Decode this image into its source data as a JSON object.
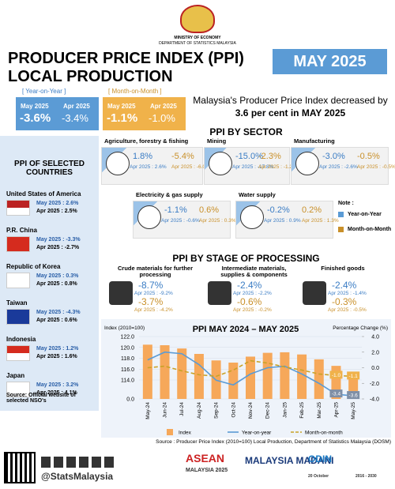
{
  "header": {
    "ministry": "MINISTRY OF ECONOMY",
    "department": "DEPARTMENT OF STATISTICS MALAYSIA",
    "title_line1": "PRODUCER PRICE INDEX (PPI)",
    "title_line2": "LOCAL PRODUCTION",
    "period": "MAY 2025"
  },
  "summary": {
    "yoy": {
      "label": "[ Year-on-Year ]",
      "current_label": "May 2025",
      "current": "-3.6%",
      "previous_label": "Apr 2025",
      "previous": "-3.4%"
    },
    "mom": {
      "label": "[ Month-on-Month ]",
      "current_label": "May 2025",
      "current": "-1.1%",
      "previous_label": "Apr 2025",
      "previous": "-1.0%"
    }
  },
  "headline": {
    "line1": "Malaysia's Producer Price Index decreased by",
    "line2": "3.6 per cent in MAY 2025"
  },
  "sectors": {
    "title": "PPI BY SECTOR",
    "items": [
      {
        "name": "Agriculture, forestry & fishing",
        "yoy": "1.8%",
        "mom": "-5.4%",
        "yoy_prev": "Apr 2025 : 2.6%",
        "mom_prev": "Apr 2025 : -6.0%"
      },
      {
        "name": "Mining",
        "yoy": "-15.0%",
        "mom": "-2.3%",
        "yoy_prev": "Apr 2025 : -17.8%",
        "mom_prev": "Apr 2025 : -1.2%"
      },
      {
        "name": "Manufacturing",
        "yoy": "-3.0%",
        "mom": "-0.5%",
        "yoy_prev": "Apr 2025 : -2.6%",
        "mom_prev": "Apr 2025 : -0.5%"
      },
      {
        "name": "Electricity & gas supply",
        "yoy": "-1.1%",
        "mom": "0.6%",
        "yoy_prev": "Apr 2025 : -0.6%",
        "mom_prev": "Apr 2025 : 0.3%"
      },
      {
        "name": "Water supply",
        "yoy": "-0.2%",
        "mom": "0.2%",
        "yoy_prev": "Apr 2025 : 0.9%",
        "mom_prev": "Apr 2025 : 1.3%"
      }
    ],
    "note": {
      "title": "Note :",
      "yoy": "Year-on-Year",
      "mom": "Month-on-Month"
    }
  },
  "countries": {
    "title": "PPI OF SELECTED COUNTRIES",
    "items": [
      {
        "name": "United States of America",
        "current": "May 2025 : 2.6%",
        "previous": "Apr 2025 : 2.5%"
      },
      {
        "name": "P.R. China",
        "current": "May 2025 : -3.3%",
        "previous": "Apr 2025 : -2.7%"
      },
      {
        "name": "Republic of Korea",
        "current": "May 2025 : 0.3%",
        "previous": "Apr 2025 : 0.8%"
      },
      {
        "name": "Taiwan",
        "current": "May 2025 : -4.3%",
        "previous": "Apr 2025 : 0.6%"
      },
      {
        "name": "Indonesia",
        "current": "May 2025 : 1.2%",
        "previous": "Apr 2025 : 1.6%"
      },
      {
        "name": "Japan",
        "current": "May 2025 : 3.2%",
        "previous": "Apr 2025 : 4.1%"
      }
    ],
    "source": "Source: Official website of selected NSO's"
  },
  "stages": {
    "title": "PPI BY STAGE OF PROCESSING",
    "items": [
      {
        "name": "Crude materials for further processing",
        "yoy": "-8.7%",
        "yoy_prev": "Apr 2025 : -9.2%",
        "mom": "-3.7%",
        "mom_prev": "Apr 2025 : -4.2%"
      },
      {
        "name": "Intermediate materials, supplies & components",
        "yoy": "-2.4%",
        "yoy_prev": "Apr 2025 : -2.2%",
        "mom": "-0.6%",
        "mom_prev": "Apr 2025 : -0.2%"
      },
      {
        "name": "Finished goods",
        "yoy": "-2.4%",
        "yoy_prev": "Apr 2025 : -1.4%",
        "mom": "-0.3%",
        "mom_prev": "Apr 2025 : -0.5%"
      }
    ]
  },
  "chart_data": {
    "type": "combo",
    "title": "PPI MAY 2024 – MAY 2025",
    "y_label": "Index (2010=100)",
    "y2_label": "Percentage Change (%)",
    "categories": [
      "May-24",
      "Jun-24",
      "Jul-24",
      "Aug-24",
      "Sep-24",
      "Oct-24",
      "Nov-24",
      "Dec-24",
      "Jan-25",
      "Feb-25",
      "Mar-25",
      "Apr-25",
      "May-25"
    ],
    "series": [
      {
        "name": "Index",
        "color": "#f6a85a",
        "values": [
          120.5,
          120.4,
          119.8,
          118.8,
          117.6,
          117.2,
          118.3,
          119.0,
          119.1,
          118.7,
          117.8,
          116.6,
          115.3
        ]
      },
      {
        "name": "Year-on-year",
        "color": "#5b9bd5",
        "axis": "y2",
        "values": [
          1.0,
          2.0,
          1.8,
          0.4,
          -1.6,
          -2.2,
          -0.8,
          0.0,
          0.2,
          -0.8,
          -2.0,
          -3.4,
          -3.6
        ],
        "value_labels": [
          null,
          null,
          null,
          null,
          null,
          null,
          null,
          null,
          null,
          null,
          null,
          "-3.4",
          "-3.6"
        ]
      },
      {
        "name": "Month-on-month",
        "color": "#c9a227",
        "axis": "y2",
        "dashed": true,
        "values": [
          0.0,
          0.2,
          -0.4,
          -0.9,
          -1.1,
          -0.3,
          0.9,
          0.6,
          0.1,
          -0.3,
          -0.8,
          -1.0,
          -1.1
        ],
        "value_labels": [
          null,
          null,
          null,
          null,
          null,
          null,
          null,
          null,
          null,
          null,
          null,
          "-1.0",
          "-1.1"
        ]
      }
    ],
    "ylim": [
      0,
      122
    ],
    "yticks": [
      {
        "value": 0,
        "label": "0.0"
      },
      {
        "value": 114,
        "label": "114.0"
      },
      {
        "value": 116,
        "label": "116.0"
      },
      {
        "value": 118,
        "label": "118.0"
      },
      {
        "value": 120,
        "label": "120.0"
      },
      {
        "value": 122,
        "label": "122.0"
      }
    ],
    "y2lim": [
      -4,
      4
    ],
    "y2ticks": [
      {
        "value": -4,
        "label": "-4.0"
      },
      {
        "value": -2,
        "label": "-2.0"
      },
      {
        "value": 0,
        "label": "0.0"
      },
      {
        "value": 2,
        "label": "2.0"
      },
      {
        "value": 4,
        "label": "4.0"
      }
    ],
    "grid": true
  },
  "source": "Source : Producer Price Index (2010=100) Local Production, Department of Statistics Malaysia (DOSM)",
  "footer": {
    "handle": "@StatsMalaysia",
    "logos": [
      "ASEAN",
      "MALAYSIA 2025",
      "MALAYSIA MADANI",
      "ODIN",
      "20 October",
      "2016 - 2030"
    ]
  }
}
